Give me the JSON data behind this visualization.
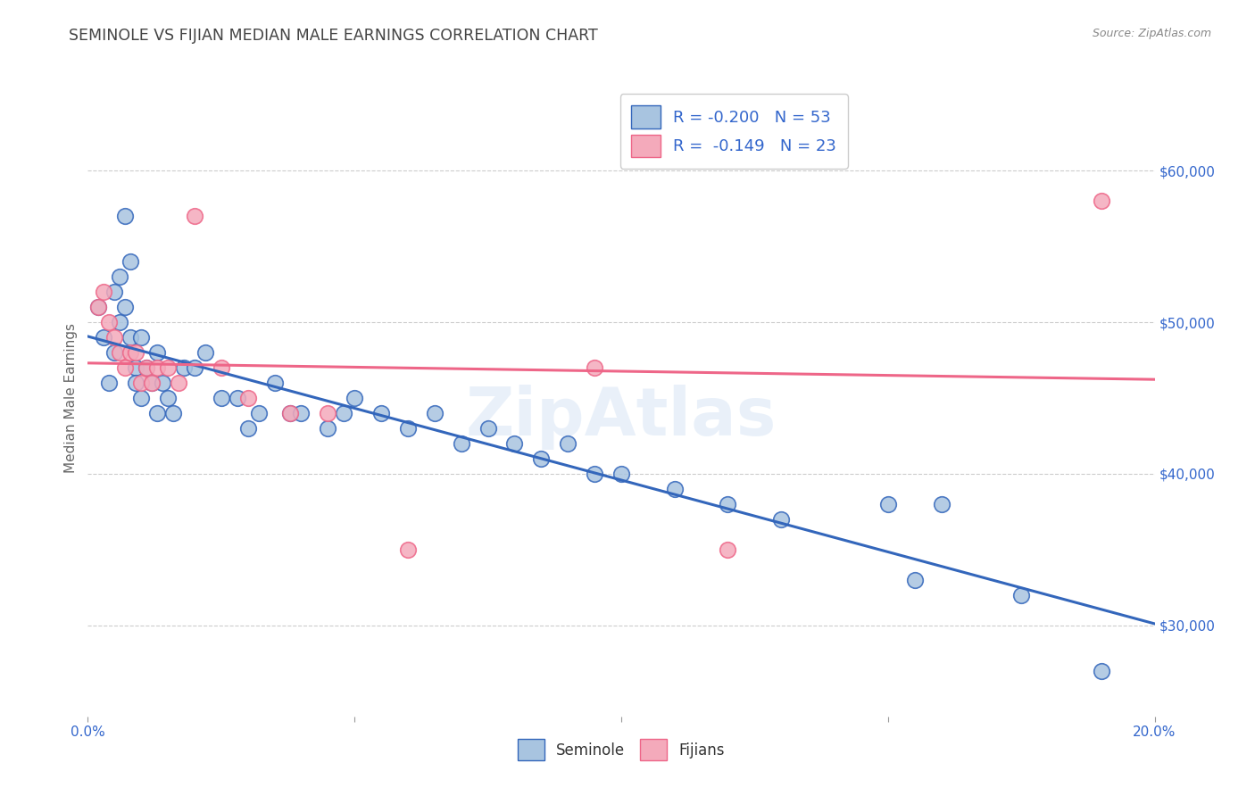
{
  "title": "SEMINOLE VS FIJIAN MEDIAN MALE EARNINGS CORRELATION CHART",
  "source": "Source: ZipAtlas.com",
  "ylabel": "Median Male Earnings",
  "xlim": [
    0.0,
    0.2
  ],
  "ylim": [
    24000,
    66000
  ],
  "xticks": [
    0.0,
    0.05,
    0.1,
    0.15,
    0.2
  ],
  "xticklabels": [
    "0.0%",
    "",
    "",
    "",
    "20.0%"
  ],
  "yticks_right": [
    30000,
    40000,
    50000,
    60000
  ],
  "yticklabels_right": [
    "$30,000",
    "$40,000",
    "$50,000",
    "$60,000"
  ],
  "legend_r1": "R = -0.200",
  "legend_n1": "N = 53",
  "legend_r2": "R =  -0.149",
  "legend_n2": "N = 23",
  "blue_color": "#A8C4E0",
  "pink_color": "#F4AABB",
  "line_blue": "#3366BB",
  "line_pink": "#EE6688",
  "background": "#FFFFFF",
  "grid_color": "#CCCCCC",
  "title_color": "#444444",
  "axis_label_color": "#666666",
  "tick_color": "#3366CC",
  "watermark": "ZipAtlas",
  "seminole_x": [
    0.002,
    0.003,
    0.004,
    0.005,
    0.005,
    0.006,
    0.006,
    0.007,
    0.007,
    0.008,
    0.008,
    0.009,
    0.009,
    0.01,
    0.01,
    0.011,
    0.012,
    0.013,
    0.013,
    0.014,
    0.015,
    0.016,
    0.018,
    0.02,
    0.022,
    0.025,
    0.028,
    0.03,
    0.032,
    0.035,
    0.038,
    0.04,
    0.045,
    0.048,
    0.05,
    0.055,
    0.06,
    0.065,
    0.07,
    0.075,
    0.08,
    0.085,
    0.09,
    0.095,
    0.1,
    0.11,
    0.12,
    0.13,
    0.15,
    0.155,
    0.16,
    0.175,
    0.19
  ],
  "seminole_y": [
    51000,
    49000,
    46000,
    48000,
    52000,
    50000,
    53000,
    57000,
    51000,
    54000,
    49000,
    47000,
    46000,
    49000,
    45000,
    47000,
    46000,
    48000,
    44000,
    46000,
    45000,
    44000,
    47000,
    47000,
    48000,
    45000,
    45000,
    43000,
    44000,
    46000,
    44000,
    44000,
    43000,
    44000,
    45000,
    44000,
    43000,
    44000,
    42000,
    43000,
    42000,
    41000,
    42000,
    40000,
    40000,
    39000,
    38000,
    37000,
    38000,
    33000,
    38000,
    32000,
    27000
  ],
  "fijian_x": [
    0.002,
    0.003,
    0.004,
    0.005,
    0.006,
    0.007,
    0.008,
    0.009,
    0.01,
    0.011,
    0.012,
    0.013,
    0.015,
    0.017,
    0.02,
    0.025,
    0.03,
    0.038,
    0.045,
    0.06,
    0.095,
    0.12,
    0.19
  ],
  "fijian_y": [
    51000,
    52000,
    50000,
    49000,
    48000,
    47000,
    48000,
    48000,
    46000,
    47000,
    46000,
    47000,
    47000,
    46000,
    57000,
    47000,
    45000,
    44000,
    44000,
    35000,
    47000,
    35000,
    58000
  ]
}
